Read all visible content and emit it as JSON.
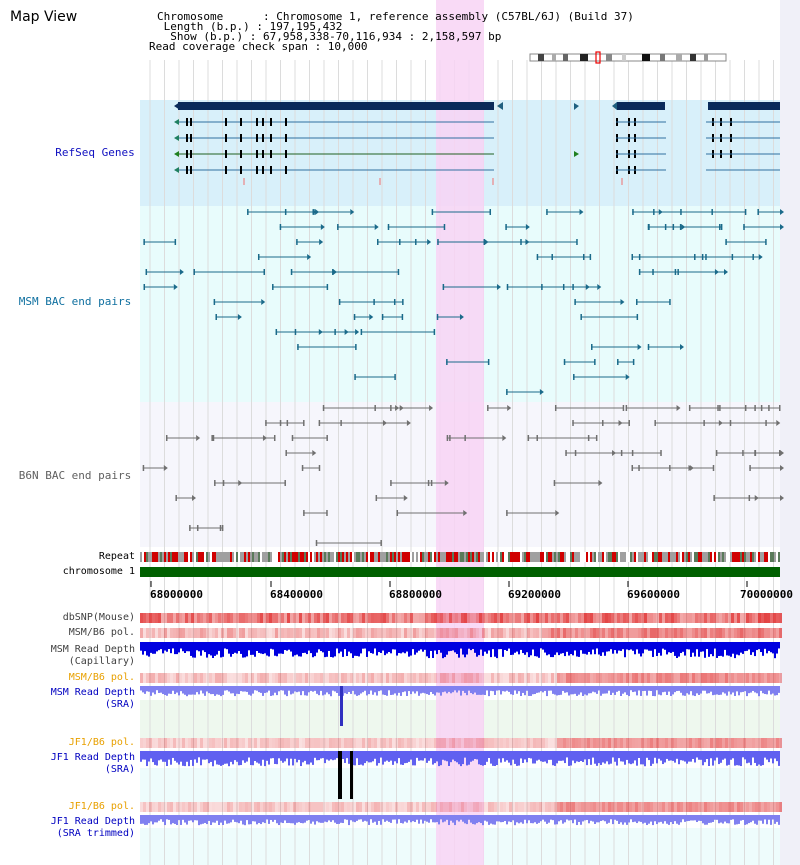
{
  "title": "Map View",
  "info": {
    "chromosome": "Chromosome      : Chromosome 1, reference assembly (C57BL/6J) (Build 37)",
    "length": " Length (b.p.) : 197,195,432",
    "show": "  Show (b.p.) : 67,958,338-70,116,934 : 2,158,597 bp",
    "coverage": "Read coverage check span : 10,000"
  },
  "tracks": {
    "refseq": "RefSeq Genes",
    "msm_bac": "MSM BAC end pairs",
    "b6n_bac": "B6N BAC end pairs",
    "repeat": "Repeat",
    "chromosome": "chromosome 1"
  },
  "axis_ticks": [
    "68000000",
    "68400000",
    "68800000",
    "69200000",
    "69600000",
    "70000000"
  ],
  "lower_tracks": {
    "dbsnp": "dbSNP(Mouse)",
    "msm_b6_pol": "MSM/B6 pol.",
    "msm_depth_cap_1": "MSM Read Depth",
    "msm_depth_cap_2": "(Capillary)",
    "msm_b6_pol2": "MSM/B6 pol.",
    "msm_depth_sra_1": "MSM Read Depth",
    "msm_depth_sra_2": "(SRA)",
    "jf1_b6_pol": "JF1/B6 pol.",
    "jf1_depth_sra_1": "JF1 Read Depth",
    "jf1_depth_sra_2": "(SRA)",
    "jf1_b6_pol2": "JF1/B6 pol.",
    "jf1_depth_trim_1": "JF1 Read Depth",
    "jf1_depth_trim_2": "(SRA trimmed)"
  },
  "colors": {
    "refseq_bg": "#d8f0fa",
    "msm_bg": "#e8fcfc",
    "b6n_bg": "#f6f6fc",
    "highlight": "#f8d4f4",
    "refseq_label": "#1010c0",
    "msm_label": "#1070a0",
    "b6n_label": "#606060",
    "orange_label": "#e8a000",
    "blue_label": "#0000c0",
    "chrom_bar": "#006000"
  }
}
